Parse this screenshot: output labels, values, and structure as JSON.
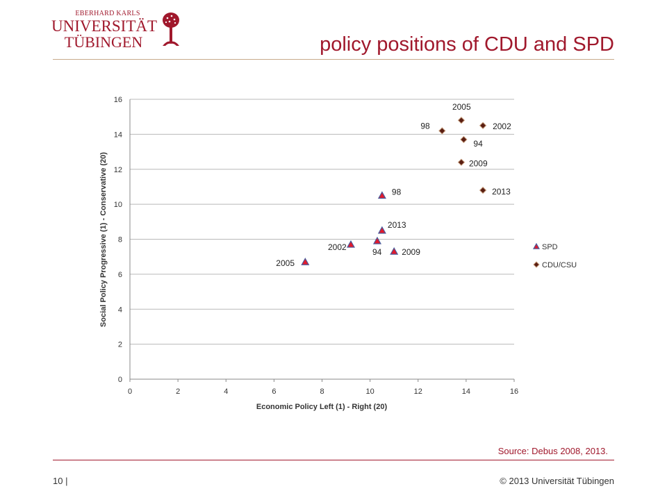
{
  "header": {
    "logo_line1": "EBERHARD KARLS",
    "logo_line2": "UNIVERSITÄT",
    "logo_line3": "TÜBINGEN",
    "title": "policy positions of CDU and SPD"
  },
  "footer": {
    "source": "Source: Debus 2008, 2013.",
    "page": "10 |",
    "copyright": "© 2013 Universität Tübingen"
  },
  "colors": {
    "brand": "#a0182c",
    "spd_fill": "#e21a2c",
    "spd_edge": "#4a5a9a",
    "cdu_fill": "#5a1e12",
    "cdu_edge": "#c8a080",
    "grid": "#b8b8b8"
  },
  "chart_data": {
    "type": "scatter",
    "xlabel": "Economic Policy Left (1) - Right (20)",
    "ylabel": "Social Policy Progressive (1) - Conservative (20)",
    "xlim": [
      0,
      16
    ],
    "ylim": [
      0,
      16
    ],
    "xticks": [
      0,
      2,
      4,
      6,
      8,
      10,
      12,
      14,
      16
    ],
    "yticks": [
      0,
      2,
      4,
      6,
      8,
      10,
      12,
      14,
      16
    ],
    "grid": "horizontal",
    "legend_position": "right",
    "series": [
      {
        "name": "SPD",
        "marker": "triangle",
        "points": [
          {
            "x": 7.3,
            "y": 6.7,
            "label": "2005"
          },
          {
            "x": 9.2,
            "y": 7.7,
            "label": "2002"
          },
          {
            "x": 10.3,
            "y": 7.9,
            "label": "94"
          },
          {
            "x": 10.5,
            "y": 8.5,
            "label": "2013"
          },
          {
            "x": 11.0,
            "y": 7.3,
            "label": "2009"
          },
          {
            "x": 10.5,
            "y": 10.5,
            "label": "98"
          }
        ]
      },
      {
        "name": "CDU/CSU",
        "marker": "diamond",
        "points": [
          {
            "x": 13.0,
            "y": 14.2,
            "label": "98"
          },
          {
            "x": 13.8,
            "y": 14.8,
            "label": "2005"
          },
          {
            "x": 14.7,
            "y": 14.5,
            "label": "2002"
          },
          {
            "x": 13.9,
            "y": 13.7,
            "label": "94"
          },
          {
            "x": 13.8,
            "y": 12.4,
            "label": "2009"
          },
          {
            "x": 14.7,
            "y": 10.8,
            "label": "2013"
          }
        ]
      }
    ]
  }
}
